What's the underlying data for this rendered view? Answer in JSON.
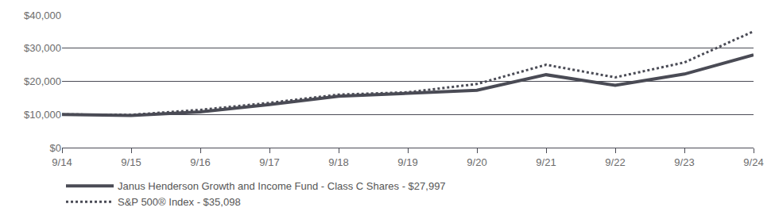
{
  "chart_data": {
    "type": "line",
    "categories": [
      "9/14",
      "9/15",
      "9/16",
      "9/17",
      "9/18",
      "9/19",
      "9/20",
      "9/21",
      "9/22",
      "9/23",
      "9/24"
    ],
    "series": [
      {
        "name": "Janus Henderson Growth and Income Fund - Class C Shares - $27,997",
        "color": "#4a4b55",
        "line_style": "solid",
        "values": [
          10000,
          9700,
          10800,
          13000,
          15500,
          16400,
          17300,
          22000,
          18800,
          22200,
          27997
        ]
      },
      {
        "name": "S&P 500® Index - $35,098",
        "color": "#4a4b55",
        "line_style": "dotted",
        "values": [
          10000,
          9900,
          11400,
          13500,
          16000,
          16700,
          19200,
          25000,
          21200,
          25700,
          35098
        ]
      }
    ],
    "ylim": [
      0,
      40000
    ],
    "yticks": [
      {
        "value": 0,
        "label": "$0"
      },
      {
        "value": 10000,
        "label": "$10,000"
      },
      {
        "value": 20000,
        "label": "$20,000"
      },
      {
        "value": 30000,
        "label": "$30,000"
      },
      {
        "value": 40000,
        "label": "$40,000"
      }
    ],
    "grid": true,
    "legend": "bottom"
  }
}
